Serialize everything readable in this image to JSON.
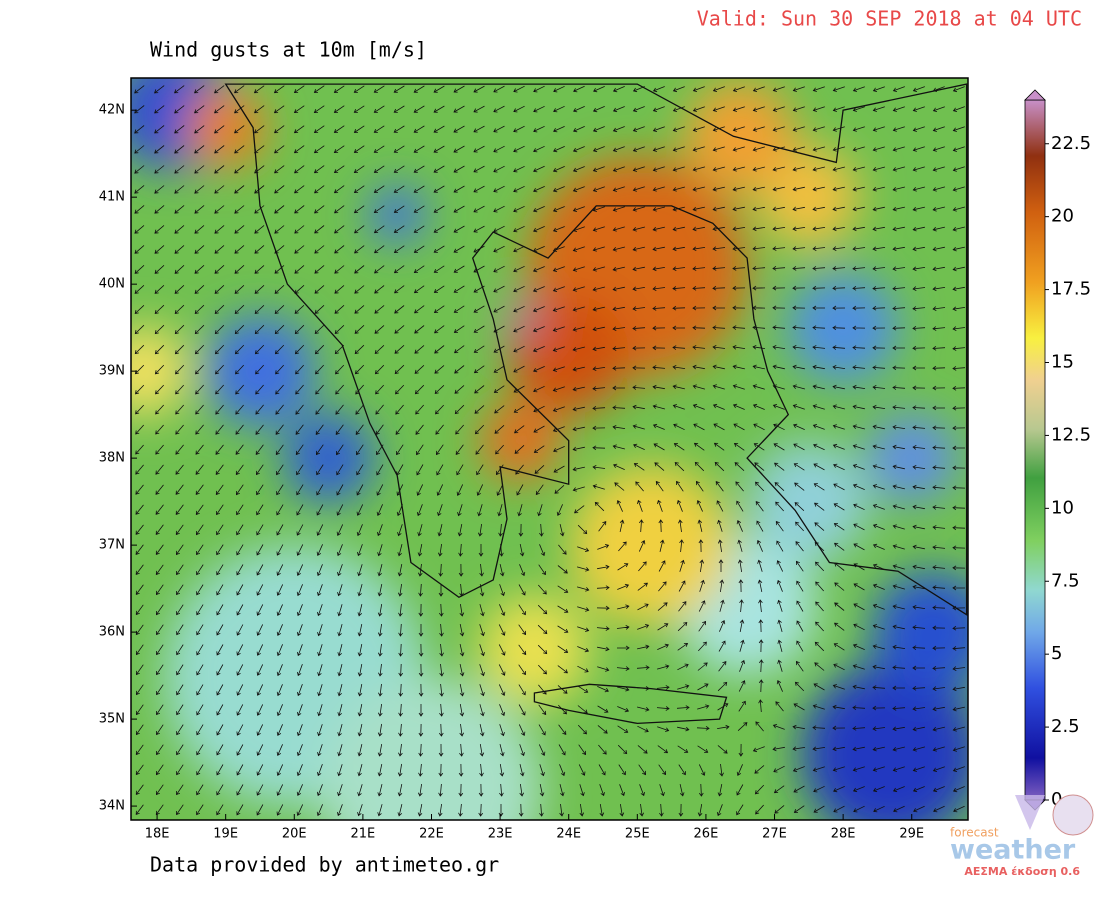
{
  "header": {
    "valid": "Valid: Sun 30 SEP 2018 at 04 UTC",
    "title": "Wind gusts at 10m [m/s]"
  },
  "map": {
    "lonlim": [
      17.62,
      29.82
    ],
    "latlim": [
      33.84,
      42.37
    ],
    "lonticks": [
      {
        "value": 18,
        "label": "18E"
      },
      {
        "value": 19,
        "label": "19E"
      },
      {
        "value": 20,
        "label": "20E"
      },
      {
        "value": 21,
        "label": "21E"
      },
      {
        "value": 22,
        "label": "22E"
      },
      {
        "value": 23,
        "label": "23E"
      },
      {
        "value": 24,
        "label": "24E"
      },
      {
        "value": 25,
        "label": "25E"
      },
      {
        "value": 26,
        "label": "26E"
      },
      {
        "value": 27,
        "label": "27E"
      },
      {
        "value": 28,
        "label": "28E"
      },
      {
        "value": 29,
        "label": "29E"
      }
    ],
    "latticks": [
      {
        "value": 34,
        "label": "34N"
      },
      {
        "value": 35,
        "label": "35N"
      },
      {
        "value": 36,
        "label": "36N"
      },
      {
        "value": 37,
        "label": "37N"
      },
      {
        "value": 38,
        "label": "38N"
      },
      {
        "value": 39,
        "label": "39N"
      },
      {
        "value": 40,
        "label": "40N"
      },
      {
        "value": 41,
        "label": "41N"
      },
      {
        "value": 42,
        "label": "42N"
      }
    ]
  },
  "colorbar": {
    "range": [
      0,
      24
    ],
    "ticks": [
      0,
      2.5,
      5,
      7.5,
      10,
      12.5,
      15,
      17.5,
      20,
      22.5
    ]
  },
  "footer": {
    "credit": "Data provided by antimeteo.gr"
  },
  "logo": {
    "small": "forecast",
    "brand": "weather",
    "version": "ΑΕΣΜΑ έκδοση 0.6"
  }
}
